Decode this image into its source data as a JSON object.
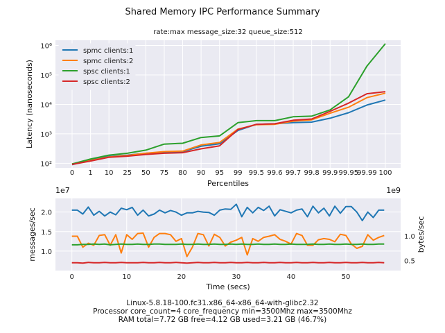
{
  "suptitle": "Shared Memory IPC Performance Summary",
  "chart_data": [
    {
      "type": "line",
      "title": "rate:max message_size:32 queue_size:512",
      "xlabel": "Percentiles",
      "ylabel": "Latency (nanoseconds)",
      "yscale": "log",
      "ylim": [
        70,
        1500000
      ],
      "grid": true,
      "legend_position": "top-left",
      "categories": [
        "0",
        "1",
        "10",
        "25",
        "50",
        "75",
        "80",
        "90",
        "95",
        "99",
        "99.5",
        "99.6",
        "99.7",
        "99.8",
        "99.9",
        "99.95",
        "99.99",
        "100"
      ],
      "ytick_values": [
        100,
        1000,
        10000,
        100000,
        1000000
      ],
      "ytick_labels": [
        "10²",
        "10³",
        "10⁴",
        "10⁵",
        "10⁶"
      ],
      "series": [
        {
          "name": "spmc clients:1",
          "color": "#1f77b4",
          "values": [
            90,
            130,
            170,
            190,
            220,
            240,
            250,
            380,
            460,
            1300,
            2100,
            2200,
            2400,
            2500,
            3400,
            5200,
            9500,
            14000
          ]
        },
        {
          "name": "spmc clients:2",
          "color": "#ff7f0e",
          "values": [
            95,
            125,
            165,
            185,
            220,
            250,
            260,
            420,
            510,
            1450,
            2050,
            2100,
            2700,
            3000,
            5000,
            8000,
            17000,
            24000
          ]
        },
        {
          "name": "spsc clients:1",
          "color": "#2ca02c",
          "values": [
            95,
            140,
            190,
            220,
            280,
            450,
            480,
            750,
            850,
            2400,
            2800,
            2800,
            3800,
            4000,
            6500,
            18000,
            200000,
            1150000
          ]
        },
        {
          "name": "spsc clients:2",
          "color": "#d62728",
          "values": [
            92,
            120,
            160,
            175,
            200,
            220,
            230,
            310,
            390,
            1400,
            2100,
            2200,
            2900,
            3200,
            5800,
            11000,
            23000,
            27000
          ]
        }
      ]
    },
    {
      "type": "line",
      "xlabel": "Time (secs)",
      "ylabel": "messages/sec",
      "ylabel_right": "bytes/sec",
      "left_offset_label": "1e7",
      "right_offset_label": "1e9",
      "xlim": [
        -3,
        60
      ],
      "ylim": [
        0.5,
        2.35
      ],
      "ylim_right": [
        0.3,
        1.75
      ],
      "xticks": [
        0,
        10,
        20,
        30,
        40,
        50
      ],
      "yticks_left": [
        1.0,
        1.5,
        2.0
      ],
      "yticks_left_labels": [
        "1.0",
        "1.5",
        "2.0"
      ],
      "yticks_right": [
        0.5,
        1.0
      ],
      "yticks_right_labels": [
        "0.5",
        "1.0"
      ],
      "grid": true,
      "x": [
        0,
        1,
        2,
        3,
        4,
        5,
        6,
        7,
        8,
        9,
        10,
        11,
        12,
        13,
        14,
        15,
        16,
        17,
        18,
        19,
        20,
        21,
        22,
        23,
        24,
        25,
        26,
        27,
        28,
        29,
        30,
        31,
        32,
        33,
        34,
        35,
        36,
        37,
        38,
        39,
        40,
        41,
        42,
        43,
        44,
        45,
        46,
        47,
        48,
        49,
        50,
        51,
        52,
        53,
        54,
        55,
        56,
        57
      ],
      "series": [
        {
          "color": "#1f77b4",
          "axis": "left",
          "values": [
            2.05,
            2.05,
            1.95,
            2.13,
            1.92,
            2.02,
            1.9,
            2.0,
            1.93,
            2.1,
            2.06,
            2.12,
            1.92,
            2.05,
            1.9,
            1.95,
            2.05,
            1.98,
            2.04,
            2.0,
            1.92,
            1.98,
            1.98,
            2.02,
            2.0,
            1.99,
            1.92,
            2.05,
            2.08,
            2.07,
            2.2,
            1.88,
            2.12,
            1.98,
            2.12,
            2.04,
            2.15,
            1.9,
            2.06,
            2.02,
            1.98,
            2.05,
            2.08,
            1.88,
            2.15,
            1.98,
            2.1,
            1.9,
            2.15,
            1.97,
            2.14,
            2.14,
            2.0,
            1.78,
            2.0,
            1.86,
            2.05,
            2.05
          ]
        },
        {
          "color": "#ff7f0e",
          "axis": "left",
          "values": [
            1.38,
            1.38,
            1.1,
            1.2,
            1.15,
            1.4,
            1.42,
            1.15,
            1.42,
            0.95,
            1.42,
            1.3,
            1.45,
            1.46,
            1.1,
            1.35,
            1.45,
            1.45,
            1.42,
            1.25,
            1.32,
            0.86,
            1.1,
            1.45,
            1.42,
            1.13,
            1.43,
            1.35,
            1.13,
            1.23,
            1.28,
            1.35,
            0.9,
            1.32,
            1.25,
            1.35,
            1.38,
            1.42,
            1.3,
            1.25,
            1.18,
            1.45,
            1.4,
            1.15,
            1.15,
            1.29,
            1.32,
            1.3,
            1.24,
            1.43,
            1.4,
            1.18,
            1.07,
            1.12,
            1.42,
            1.28,
            1.35,
            1.4
          ]
        },
        {
          "color": "#2ca02c",
          "axis": "left",
          "values": [
            1.16,
            1.16,
            1.17,
            1.17,
            1.18,
            1.17,
            1.18,
            1.16,
            1.17,
            1.18,
            1.17,
            1.17,
            1.18,
            1.17,
            1.17,
            1.18,
            1.18,
            1.17,
            1.17,
            1.17,
            1.18,
            1.17,
            1.17,
            1.18,
            1.17,
            1.17,
            1.18,
            1.17,
            1.17,
            1.18,
            1.17,
            1.18,
            1.17,
            1.17,
            1.18,
            1.17,
            1.17,
            1.18,
            1.17,
            1.17,
            1.18,
            1.17,
            1.17,
            1.17,
            1.18,
            1.17,
            1.17,
            1.18,
            1.17,
            1.17,
            1.18,
            1.17,
            1.17,
            1.18,
            1.17,
            1.17,
            1.18,
            1.18
          ]
        },
        {
          "color": "#d62728",
          "axis": "left",
          "values": [
            0.7,
            0.7,
            0.69,
            0.71,
            0.7,
            0.7,
            0.71,
            0.7,
            0.7,
            0.71,
            0.7,
            0.7,
            0.7,
            0.71,
            0.7,
            0.7,
            0.71,
            0.7,
            0.7,
            0.71,
            0.7,
            0.69,
            0.7,
            0.71,
            0.7,
            0.7,
            0.71,
            0.7,
            0.7,
            0.71,
            0.7,
            0.7,
            0.71,
            0.7,
            0.7,
            0.71,
            0.7,
            0.7,
            0.71,
            0.7,
            0.7,
            0.71,
            0.7,
            0.7,
            0.71,
            0.7,
            0.7,
            0.71,
            0.7,
            0.7,
            0.71,
            0.7,
            0.7,
            0.71,
            0.7,
            0.7,
            0.71,
            0.7
          ]
        }
      ]
    }
  ],
  "footer": {
    "line1": "Linux-5.8.18-100.fc31.x86_64-x86_64-with-glibc2.32",
    "line2": "Processor core_count=4 core_frequency min=3500Mhz max=3500Mhz",
    "line3": "RAM total=7.72 GB free=4.12 GB used=3.21 GB (46.7%)"
  }
}
